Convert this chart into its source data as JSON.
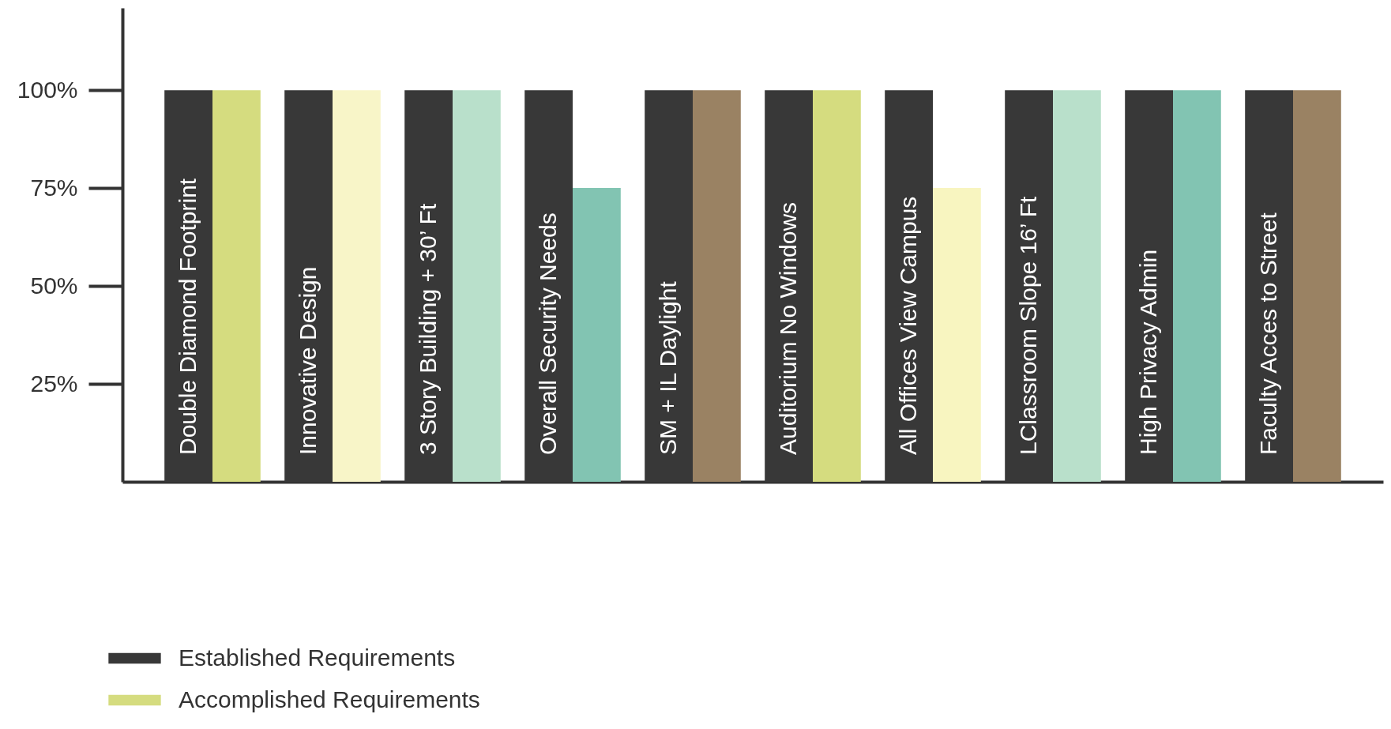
{
  "chart_data": {
    "type": "bar",
    "categories": [
      "Double Diamond Footprint",
      "Innovative Design",
      "3 Story Building + 30’ Ft",
      "Overall Security Needs",
      "SM + IL Daylight",
      "Auditorium No Windows",
      "All Offices View Campus",
      "LClassroom Slope 16’ Ft",
      "High Privacy Admin",
      "Faculty Acces to Street"
    ],
    "series": [
      {
        "name": "Established Requirements",
        "color": "#383838",
        "values": [
          100,
          100,
          100,
          100,
          100,
          100,
          100,
          100,
          100,
          100
        ]
      },
      {
        "name": "Accomplished Requirements",
        "color": "#d5dc7f",
        "colors": [
          "#d5dc7f",
          "#f8f5c8",
          "#b9e0cb",
          "#82c4b2",
          "#9a8263",
          "#d5dc7f",
          "#f8f5c0",
          "#b9e0cb",
          "#82c4b2",
          "#9a8263"
        ],
        "values": [
          100,
          100,
          100,
          75,
          100,
          100,
          75,
          100,
          100,
          100
        ]
      }
    ],
    "ylim": [
      0,
      121
    ],
    "yticks": [
      {
        "value": 25,
        "label": "25%"
      },
      {
        "value": 50,
        "label": "50%"
      },
      {
        "value": 75,
        "label": "75%"
      },
      {
        "value": 100,
        "label": "100%"
      }
    ],
    "tick_labels": "y",
    "legend": "bottom left"
  }
}
